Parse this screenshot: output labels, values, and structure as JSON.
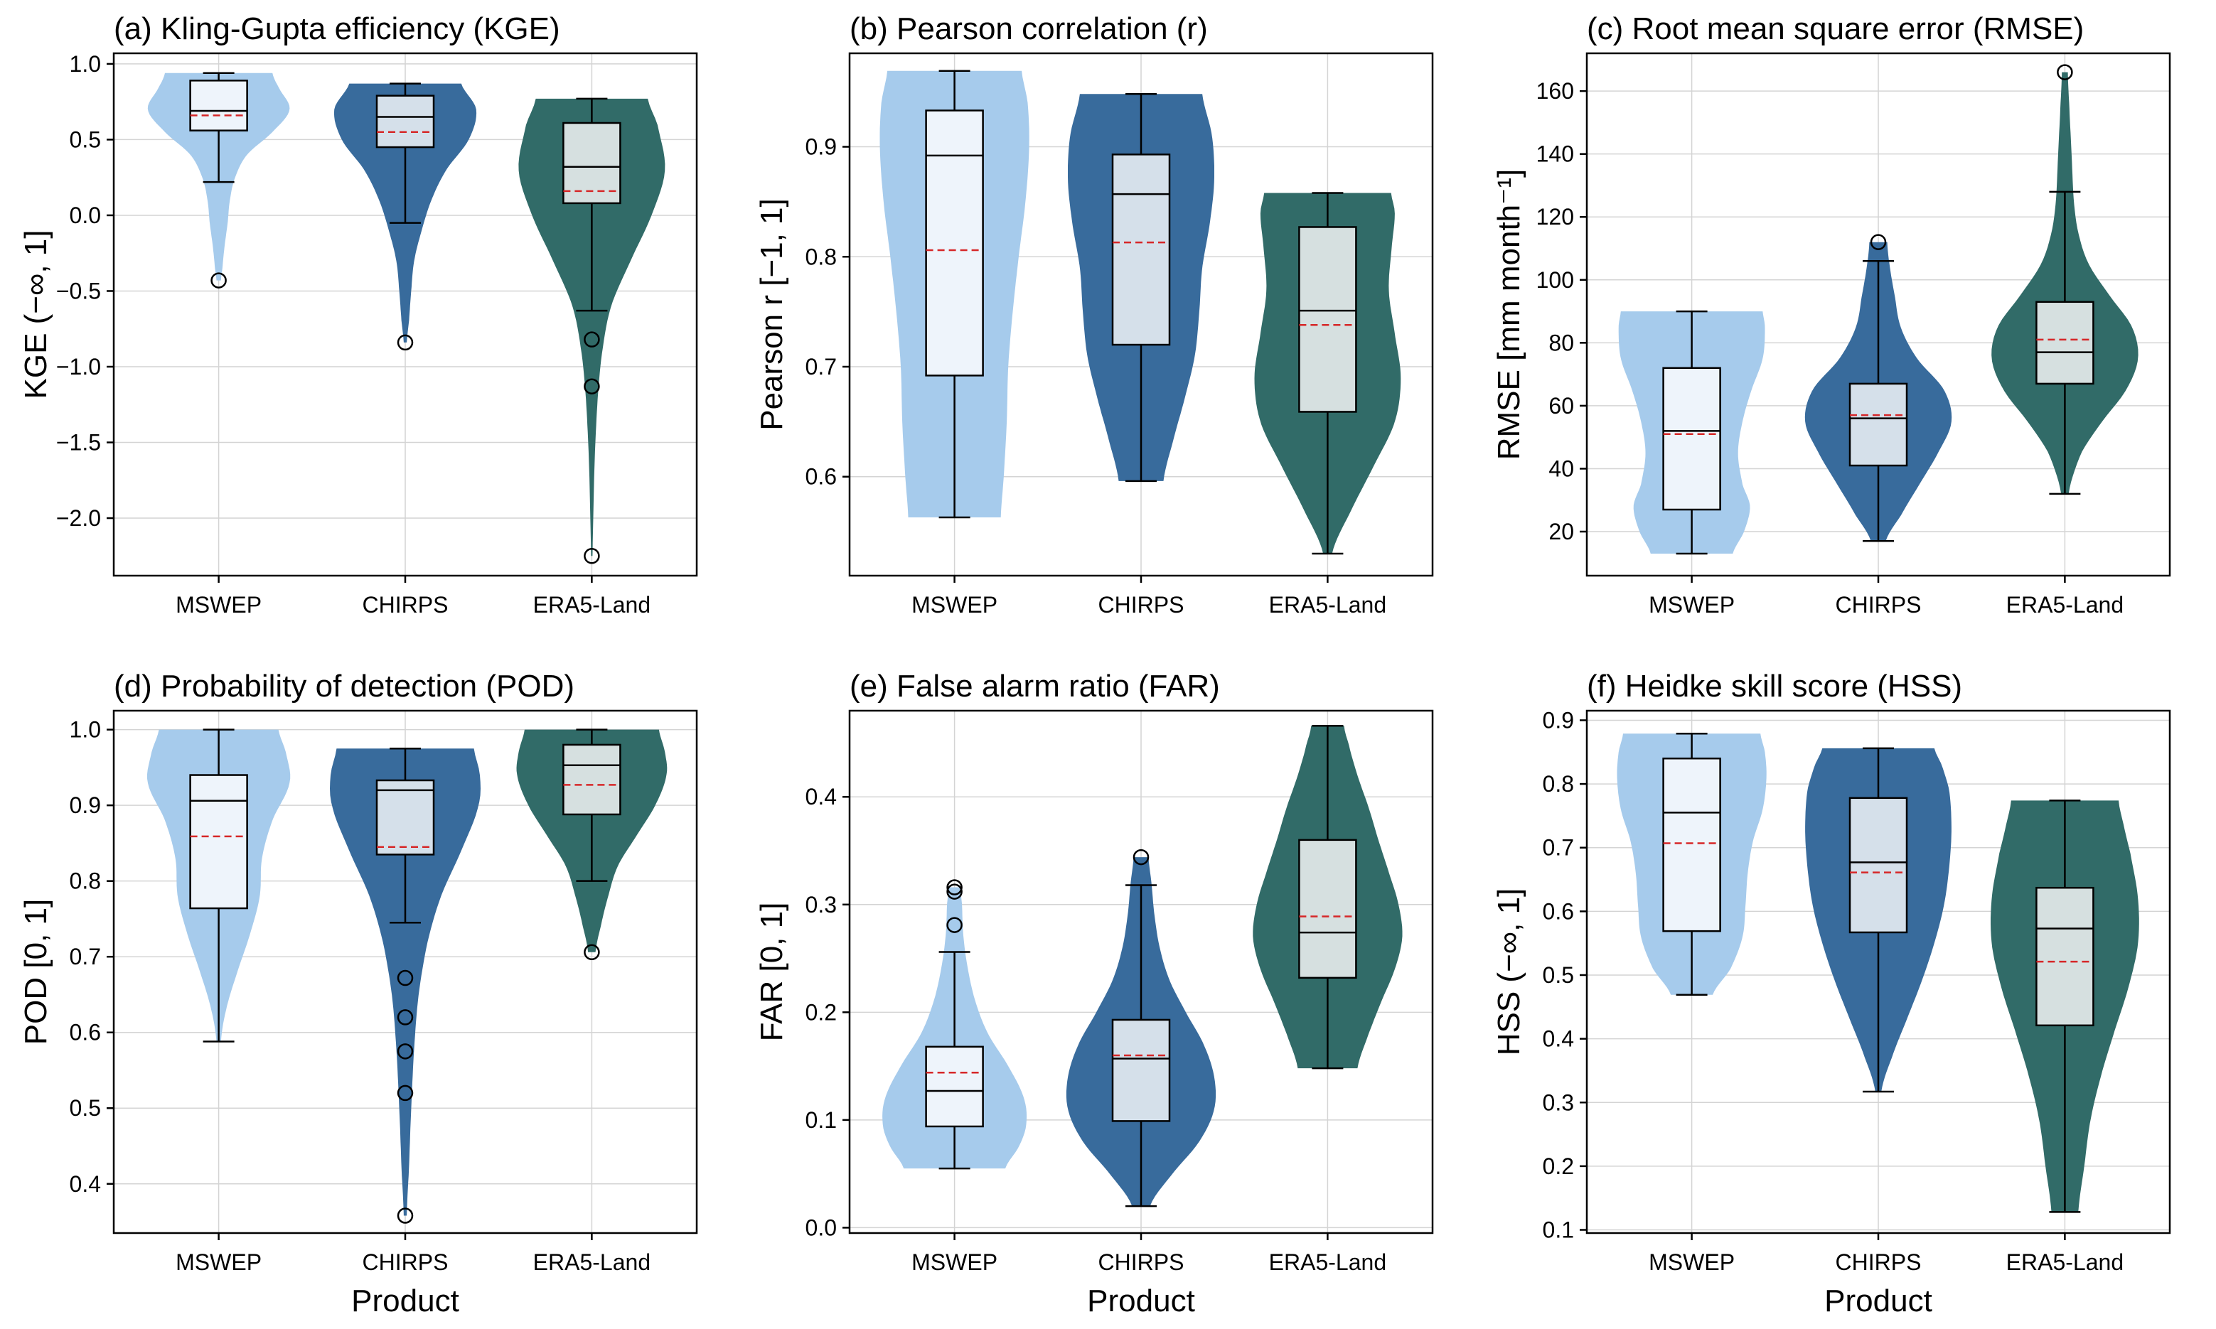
{
  "xlabel": "Product",
  "categories": [
    "MSWEP",
    "CHIRPS",
    "ERA5-Land"
  ],
  "colors": {
    "MSWEP": "#a6cbec",
    "CHIRPS": "#386b9c",
    "ERA5-Land": "#316b68"
  },
  "box_fill": [
    "#eef4fb",
    "#d5e0ea",
    "#d6e0e0"
  ],
  "mean_color": "#d62728",
  "chart_data": [
    {
      "type": "violin",
      "title": "(a) Kling-Gupta efficiency (KGE)",
      "ylabel": "KGE (−∞, 1]",
      "ylim": [
        -2.38,
        1.07
      ],
      "ticks": [
        1.0,
        0.5,
        0.0,
        -0.5,
        -1.0,
        -1.5,
        -2.0
      ],
      "tick_labels": [
        "1.0",
        "0.5",
        "0.0",
        "−0.5",
        "−1.0",
        "−1.5",
        "−2.0"
      ],
      "series": [
        {
          "name": "MSWEP",
          "whislo": 0.22,
          "q1": 0.56,
          "med": 0.69,
          "q3": 0.89,
          "whishi": 0.94,
          "mean": 0.66,
          "fliers": [
            -0.43
          ],
          "violin": {
            "y": [
              -0.43,
              -0.35,
              -0.2,
              -0.05,
              0.1,
              0.25,
              0.4,
              0.55,
              0.7,
              0.85,
              0.94
            ],
            "w": [
              0.03,
              0.05,
              0.08,
              0.12,
              0.15,
              0.22,
              0.38,
              0.72,
              0.95,
              0.8,
              0.72
            ]
          }
        },
        {
          "name": "CHIRPS",
          "whislo": -0.05,
          "q1": 0.45,
          "med": 0.65,
          "q3": 0.79,
          "whishi": 0.87,
          "mean": 0.55,
          "fliers": [
            -0.84
          ],
          "violin": {
            "y": [
              -0.84,
              -0.7,
              -0.5,
              -0.3,
              -0.1,
              0.1,
              0.3,
              0.5,
              0.7,
              0.87
            ],
            "w": [
              0.02,
              0.05,
              0.08,
              0.12,
              0.22,
              0.35,
              0.55,
              0.85,
              0.95,
              0.75
            ]
          }
        },
        {
          "name": "ERA5-Land",
          "whislo": -0.63,
          "q1": 0.08,
          "med": 0.32,
          "q3": 0.61,
          "whishi": 0.77,
          "mean": 0.16,
          "fliers": [
            -0.82,
            -1.13,
            -2.25
          ],
          "violin": {
            "y": [
              -2.25,
              -2.0,
              -1.6,
              -1.2,
              -0.9,
              -0.6,
              -0.3,
              0.0,
              0.3,
              0.6,
              0.77
            ],
            "w": [
              0.01,
              0.02,
              0.04,
              0.08,
              0.14,
              0.26,
              0.52,
              0.8,
              0.98,
              0.88,
              0.75
            ]
          }
        }
      ]
    },
    {
      "type": "violin",
      "title": "(b) Pearson correlation (r)",
      "ylabel": "Pearson r [−1, 1]",
      "ylim": [
        0.51,
        0.985
      ],
      "ticks": [
        0.9,
        0.8,
        0.7,
        0.6
      ],
      "tick_labels": [
        "0.9",
        "0.8",
        "0.7",
        "0.6"
      ],
      "series": [
        {
          "name": "MSWEP",
          "whislo": 0.563,
          "q1": 0.692,
          "med": 0.892,
          "q3": 0.933,
          "whishi": 0.969,
          "mean": 0.806,
          "fliers": [],
          "violin": {
            "y": [
              0.563,
              0.6,
              0.65,
              0.7,
              0.75,
              0.8,
              0.85,
              0.9,
              0.94,
              0.969
            ],
            "w": [
              0.62,
              0.66,
              0.7,
              0.72,
              0.78,
              0.86,
              0.95,
              1.0,
              0.98,
              0.9
            ]
          }
        },
        {
          "name": "CHIRPS",
          "whislo": 0.596,
          "q1": 0.72,
          "med": 0.857,
          "q3": 0.893,
          "whishi": 0.948,
          "mean": 0.813,
          "fliers": [],
          "violin": {
            "y": [
              0.596,
              0.63,
              0.67,
              0.71,
              0.75,
              0.79,
              0.83,
              0.87,
              0.91,
              0.948
            ],
            "w": [
              0.3,
              0.42,
              0.58,
              0.72,
              0.78,
              0.82,
              0.92,
              0.98,
              0.95,
              0.82
            ]
          }
        },
        {
          "name": "ERA5-Land",
          "whislo": 0.53,
          "q1": 0.659,
          "med": 0.751,
          "q3": 0.827,
          "whishi": 0.858,
          "mean": 0.738,
          "fliers": [],
          "violin": {
            "y": [
              0.53,
              0.57,
              0.61,
              0.65,
              0.69,
              0.73,
              0.77,
              0.81,
              0.84,
              0.858
            ],
            "w": [
              0.06,
              0.32,
              0.62,
              0.9,
              0.98,
              0.9,
              0.82,
              0.86,
              0.9,
              0.85
            ]
          }
        }
      ]
    },
    {
      "type": "violin",
      "title": "(c) Root mean square error (RMSE)",
      "ylabel": "RMSE [mm month⁻¹]",
      "ylim": [
        6,
        172
      ],
      "ticks": [
        20,
        40,
        60,
        80,
        100,
        120,
        140,
        160
      ],
      "tick_labels": [
        "20",
        "40",
        "60",
        "80",
        "100",
        "120",
        "140",
        "160"
      ],
      "series": [
        {
          "name": "MSWEP",
          "whislo": 13,
          "q1": 27,
          "med": 52,
          "q3": 72,
          "whishi": 90,
          "mean": 51,
          "fliers": [],
          "violin": {
            "y": [
              13,
              20,
              28,
              35,
              45,
              55,
              65,
              75,
              85,
              90
            ],
            "w": [
              0.55,
              0.7,
              0.78,
              0.68,
              0.62,
              0.68,
              0.8,
              0.95,
              0.98,
              0.95
            ]
          }
        },
        {
          "name": "CHIRPS",
          "whislo": 17,
          "q1": 41,
          "med": 56,
          "q3": 67,
          "whishi": 106,
          "mean": 57,
          "fliers": [
            112
          ],
          "violin": {
            "y": [
              17,
              25,
              35,
              45,
              55,
              65,
              75,
              85,
              95,
              105,
              112
            ],
            "w": [
              0.1,
              0.3,
              0.55,
              0.8,
              0.98,
              0.88,
              0.52,
              0.3,
              0.22,
              0.15,
              0.12
            ]
          }
        },
        {
          "name": "ERA5-Land",
          "whislo": 32,
          "q1": 67,
          "med": 77,
          "q3": 93,
          "whishi": 128,
          "mean": 81,
          "fliers": [
            166
          ],
          "violin": {
            "y": [
              32,
              45,
              55,
              65,
              75,
              85,
              95,
              105,
              115,
              125,
              140,
              155,
              166
            ],
            "w": [
              0.05,
              0.22,
              0.5,
              0.82,
              0.98,
              0.9,
              0.6,
              0.32,
              0.18,
              0.12,
              0.09,
              0.06,
              0.04
            ]
          }
        }
      ]
    },
    {
      "type": "violin",
      "title": "(d) Probability of detection (POD)",
      "ylabel": "POD [0, 1]",
      "ylim": [
        0.335,
        1.025
      ],
      "ticks": [
        1.0,
        0.9,
        0.8,
        0.7,
        0.6,
        0.5,
        0.4
      ],
      "tick_labels": [
        "1.0",
        "0.9",
        "0.8",
        "0.7",
        "0.6",
        "0.5",
        "0.4"
      ],
      "series": [
        {
          "name": "MSWEP",
          "whislo": 0.588,
          "q1": 0.764,
          "med": 0.906,
          "q3": 0.94,
          "whishi": 1.0,
          "mean": 0.859,
          "fliers": [],
          "violin": {
            "y": [
              0.588,
              0.63,
              0.68,
              0.73,
              0.78,
              0.83,
              0.88,
              0.93,
              0.97,
              1.0
            ],
            "w": [
              0.03,
              0.1,
              0.25,
              0.42,
              0.55,
              0.58,
              0.72,
              0.95,
              0.9,
              0.8
            ]
          }
        },
        {
          "name": "CHIRPS",
          "whislo": 0.745,
          "q1": 0.835,
          "med": 0.92,
          "q3": 0.933,
          "whishi": 0.975,
          "mean": 0.845,
          "fliers": [
            0.672,
            0.62,
            0.575,
            0.52,
            0.358
          ],
          "violin": {
            "y": [
              0.358,
              0.42,
              0.5,
              0.58,
              0.65,
              0.72,
              0.78,
              0.84,
              0.9,
              0.94,
              0.975
            ],
            "w": [
              0.02,
              0.05,
              0.08,
              0.12,
              0.18,
              0.3,
              0.48,
              0.75,
              0.98,
              1.0,
              0.92
            ]
          }
        },
        {
          "name": "ERA5-Land",
          "whislo": 0.8,
          "q1": 0.888,
          "med": 0.953,
          "q3": 0.98,
          "whishi": 1.0,
          "mean": 0.927,
          "fliers": [
            0.706
          ],
          "violin": {
            "y": [
              0.706,
              0.74,
              0.78,
              0.82,
              0.86,
              0.9,
              0.94,
              0.97,
              1.0
            ],
            "w": [
              0.05,
              0.12,
              0.22,
              0.35,
              0.6,
              0.85,
              1.0,
              0.98,
              0.9
            ]
          }
        }
      ]
    },
    {
      "type": "violin",
      "title": "(e) False alarm ratio (FAR)",
      "ylabel": "FAR [0, 1]",
      "ylim": [
        -0.005,
        0.48
      ],
      "ticks": [
        0.0,
        0.1,
        0.2,
        0.3,
        0.4
      ],
      "tick_labels": [
        "0.0",
        "0.1",
        "0.2",
        "0.3",
        "0.4"
      ],
      "series": [
        {
          "name": "MSWEP",
          "whislo": 0.055,
          "q1": 0.094,
          "med": 0.127,
          "q3": 0.168,
          "whishi": 0.256,
          "mean": 0.144,
          "fliers": [
            0.281,
            0.312,
            0.316
          ],
          "violin": {
            "y": [
              0.055,
              0.075,
              0.095,
              0.12,
              0.15,
              0.18,
              0.21,
              0.24,
              0.27,
              0.3,
              0.316
            ],
            "w": [
              0.68,
              0.86,
              0.96,
              0.93,
              0.72,
              0.45,
              0.28,
              0.18,
              0.12,
              0.1,
              0.08
            ]
          }
        },
        {
          "name": "CHIRPS",
          "whislo": 0.02,
          "q1": 0.099,
          "med": 0.157,
          "q3": 0.193,
          "whishi": 0.318,
          "mean": 0.16,
          "fliers": [
            0.344
          ],
          "violin": {
            "y": [
              0.02,
              0.05,
              0.08,
              0.11,
              0.14,
              0.17,
              0.2,
              0.23,
              0.26,
              0.29,
              0.32,
              0.344
            ],
            "w": [
              0.12,
              0.42,
              0.78,
              0.98,
              0.98,
              0.84,
              0.6,
              0.38,
              0.25,
              0.18,
              0.14,
              0.1
            ]
          }
        },
        {
          "name": "ERA5-Land",
          "whislo": 0.148,
          "q1": 0.232,
          "med": 0.274,
          "q3": 0.36,
          "whishi": 0.466,
          "mean": 0.289,
          "fliers": [],
          "violin": {
            "y": [
              0.148,
              0.18,
              0.21,
              0.24,
              0.27,
              0.3,
              0.33,
              0.36,
              0.39,
              0.42,
              0.45,
              0.466
            ],
            "w": [
              0.4,
              0.55,
              0.72,
              0.9,
              1.0,
              0.95,
              0.82,
              0.68,
              0.55,
              0.4,
              0.28,
              0.22
            ]
          }
        }
      ]
    },
    {
      "type": "violin",
      "title": "(f) Heidke skill score (HSS)",
      "ylabel": "HSS (−∞, 1]",
      "ylim": [
        0.095,
        0.915
      ],
      "ticks": [
        0.9,
        0.8,
        0.7,
        0.6,
        0.5,
        0.4,
        0.3,
        0.2,
        0.1
      ],
      "tick_labels": [
        "0.9",
        "0.8",
        "0.7",
        "0.6",
        "0.5",
        "0.4",
        "0.3",
        "0.2",
        "0.1"
      ],
      "series": [
        {
          "name": "MSWEP",
          "whislo": 0.469,
          "q1": 0.569,
          "med": 0.755,
          "q3": 0.84,
          "whishi": 0.879,
          "mean": 0.707,
          "fliers": [],
          "violin": {
            "y": [
              0.469,
              0.51,
              0.56,
              0.61,
              0.66,
              0.71,
              0.76,
              0.81,
              0.85,
              0.879
            ],
            "w": [
              0.28,
              0.52,
              0.68,
              0.72,
              0.75,
              0.82,
              0.95,
              1.0,
              0.98,
              0.92
            ]
          }
        },
        {
          "name": "CHIRPS",
          "whislo": 0.317,
          "q1": 0.567,
          "med": 0.677,
          "q3": 0.778,
          "whishi": 0.856,
          "mean": 0.661,
          "fliers": [],
          "violin": {
            "y": [
              0.317,
              0.37,
              0.43,
              0.49,
              0.55,
              0.61,
              0.67,
              0.73,
              0.79,
              0.83,
              0.856
            ],
            "w": [
              0.04,
              0.18,
              0.38,
              0.58,
              0.75,
              0.88,
              0.95,
              0.98,
              0.95,
              0.85,
              0.75
            ]
          }
        },
        {
          "name": "ERA5-Land",
          "whislo": 0.128,
          "q1": 0.421,
          "med": 0.573,
          "q3": 0.637,
          "whishi": 0.774,
          "mean": 0.521,
          "fliers": [],
          "violin": {
            "y": [
              0.128,
              0.2,
              0.27,
              0.34,
              0.41,
              0.48,
              0.55,
              0.62,
              0.69,
              0.74,
              0.774
            ],
            "w": [
              0.18,
              0.26,
              0.34,
              0.48,
              0.66,
              0.85,
              0.98,
              0.98,
              0.88,
              0.78,
              0.72
            ]
          }
        }
      ]
    }
  ]
}
